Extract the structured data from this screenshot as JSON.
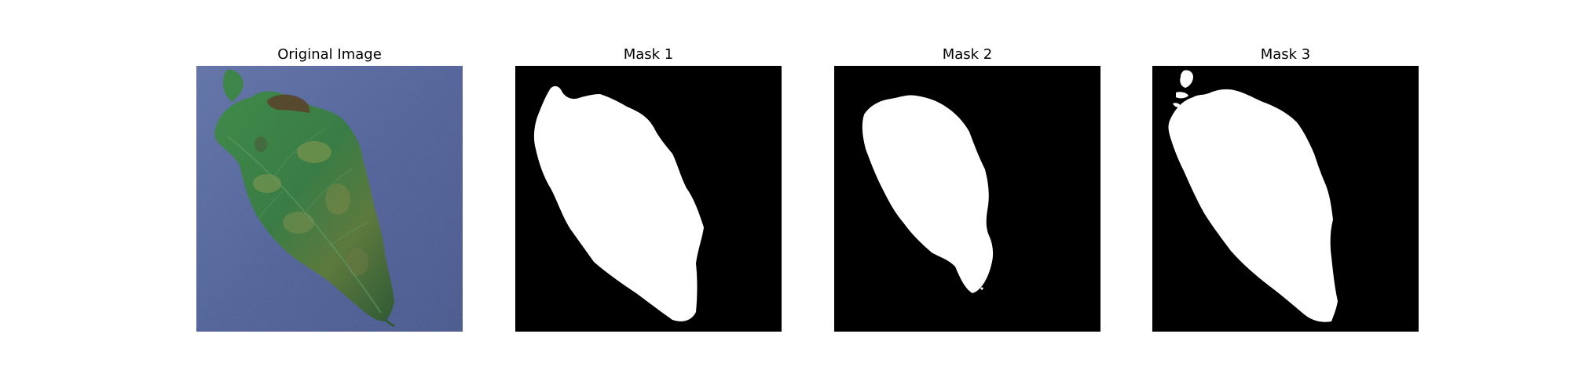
{
  "figure": {
    "panels": [
      {
        "title": "Original Image",
        "kind": "photo",
        "subject": "leaf-icon"
      },
      {
        "title": "Mask 1",
        "kind": "mask",
        "foreground": "#ffffff",
        "background": "#000000"
      },
      {
        "title": "Mask 2",
        "kind": "mask",
        "foreground": "#ffffff",
        "background": "#000000"
      },
      {
        "title": "Mask 3",
        "kind": "mask",
        "foreground": "#ffffff",
        "background": "#000000"
      }
    ]
  }
}
